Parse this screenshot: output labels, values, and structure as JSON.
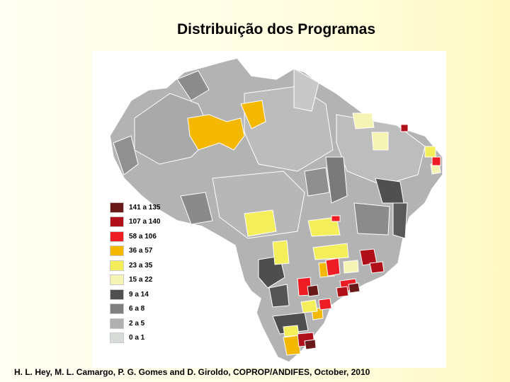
{
  "title": "Distribuição dos Programas",
  "footer": "H. L. Hey, M. L. Camargo, P. G. Gomes and D. Giroldo, COPROP/ANDIFES, October, 2010",
  "legend": [
    {
      "label": "141 a 135",
      "color": "#6b1a1a"
    },
    {
      "label": "107 a 140",
      "color": "#b0101a"
    },
    {
      "label": "58 a 106",
      "color": "#ee1c24"
    },
    {
      "label": "36 a 57",
      "color": "#f5b800"
    },
    {
      "label": "23 a 35",
      "color": "#f4ee5a"
    },
    {
      "label": "15 a 22",
      "color": "#f6f4b4"
    },
    {
      "label": "9 a 14",
      "color": "#505050"
    },
    {
      "label": "6 a 8",
      "color": "#808080"
    },
    {
      "label": "2 a 5",
      "color": "#b0b0b0"
    },
    {
      "label": "0 a 1",
      "color": "#d8dcd8"
    }
  ]
}
